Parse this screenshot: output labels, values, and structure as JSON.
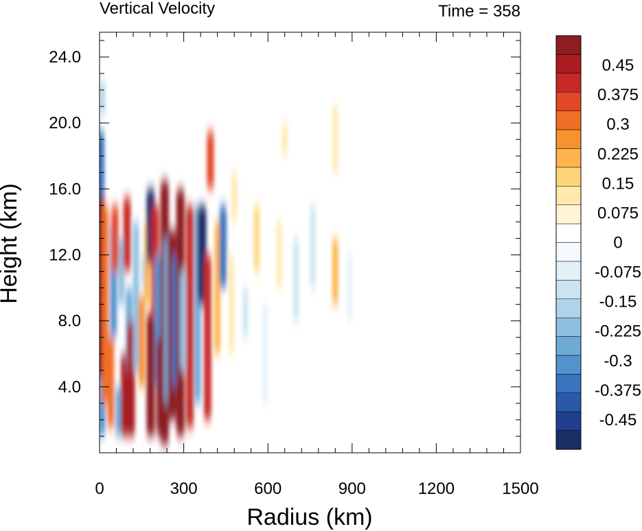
{
  "chart_data": {
    "type": "heatmap",
    "title": "Vertical Velocity",
    "right_title": "Time = 358",
    "xlabel": "Radius (km)",
    "ylabel": "Height (km)",
    "xlim": [
      0,
      1500
    ],
    "ylim": [
      0,
      25.5
    ],
    "x_ticks": [
      0,
      300,
      600,
      900,
      1200,
      1500
    ],
    "x_tick_labels": [
      "0",
      "300",
      "600",
      "900",
      "1200",
      "1500"
    ],
    "y_ticks": [
      4,
      8,
      12,
      16,
      20,
      24
    ],
    "y_tick_labels": [
      "4.0",
      "8.0",
      "12.0",
      "16.0",
      "20.0",
      "24.0"
    ],
    "colorbar": {
      "min": -0.525,
      "max": 0.525,
      "step": 0.025,
      "labels": [
        "0.45",
        "0.375",
        "0.3",
        "0.225",
        "0.15",
        "0.075",
        "0",
        "-0.075",
        "-0.15",
        "-0.225",
        "-0.3",
        "-0.375",
        "-0.45"
      ],
      "label_values": [
        0.45,
        0.375,
        0.3,
        0.225,
        0.15,
        0.075,
        0,
        -0.075,
        -0.15,
        -0.225,
        -0.3,
        -0.375,
        -0.45
      ],
      "colors": [
        "#1b2f66",
        "#1f3f8c",
        "#2a59aa",
        "#3a74bf",
        "#5293cc",
        "#6eaad6",
        "#8ebfe0",
        "#aed3ea",
        "#cbe4f2",
        "#e2f0f8",
        "#f3f9fd",
        "#ffffff",
        "#fff4d6",
        "#fee8aa",
        "#fed479",
        "#fdb44c",
        "#f8922f",
        "#ef6f26",
        "#e14826",
        "#c72a26",
        "#a91c22",
        "#8c1d20"
      ]
    },
    "features": [
      {
        "x": 2,
        "y0": 4.5,
        "y1": 16,
        "value": 0.52
      },
      {
        "x": 5,
        "y0": 15.5,
        "y1": 19.5,
        "value": -0.35
      },
      {
        "x": 10,
        "y0": 20.5,
        "y1": 22.5,
        "value": -0.15
      },
      {
        "x": 8,
        "y0": 1,
        "y1": 4.5,
        "value": -0.3
      },
      {
        "x": 20,
        "y0": 3,
        "y1": 15,
        "value": 0.3
      },
      {
        "x": 40,
        "y0": 1.5,
        "y1": 7,
        "value": 0.3
      },
      {
        "x": 50,
        "y0": 7,
        "y1": 14,
        "value": -0.3
      },
      {
        "x": 55,
        "y0": 11,
        "y1": 15,
        "value": 0.35
      },
      {
        "x": 68,
        "y0": 1,
        "y1": 4,
        "value": -0.25
      },
      {
        "x": 78,
        "y0": 9,
        "y1": 13,
        "value": -0.2
      },
      {
        "x": 90,
        "y0": 1,
        "y1": 6,
        "value": 0.45
      },
      {
        "x": 98,
        "y0": 11,
        "y1": 15.5,
        "value": 0.4
      },
      {
        "x": 105,
        "y0": 5,
        "y1": 10,
        "value": -0.25
      },
      {
        "x": 112,
        "y0": 1,
        "y1": 8,
        "value": 0.45
      },
      {
        "x": 130,
        "y0": 5,
        "y1": 14,
        "value": -0.2
      },
      {
        "x": 150,
        "y0": 4,
        "y1": 9.5,
        "value": 0.25
      },
      {
        "x": 160,
        "y0": 10,
        "y1": 12,
        "value": -0.15
      },
      {
        "x": 170,
        "y0": 9,
        "y1": 14,
        "value": 0.2
      },
      {
        "x": 182,
        "y0": 1,
        "y1": 8.5,
        "value": 0.5
      },
      {
        "x": 182,
        "y0": 11.5,
        "y1": 16,
        "value": -0.5
      },
      {
        "x": 198,
        "y0": 8,
        "y1": 15,
        "value": 0.4
      },
      {
        "x": 208,
        "y0": 4,
        "y1": 12,
        "value": -0.3
      },
      {
        "x": 218,
        "y0": 1,
        "y1": 7,
        "value": 0.5
      },
      {
        "x": 232,
        "y0": 0.5,
        "y1": 16.5,
        "value": 0.52
      },
      {
        "x": 240,
        "y0": 3,
        "y1": 13,
        "value": -0.25
      },
      {
        "x": 258,
        "y0": 2,
        "y1": 13.5,
        "value": 0.52
      },
      {
        "x": 270,
        "y0": 4,
        "y1": 12,
        "value": -0.35
      },
      {
        "x": 288,
        "y0": 1,
        "y1": 16,
        "value": 0.5
      },
      {
        "x": 296,
        "y0": 5,
        "y1": 11,
        "value": -0.2
      },
      {
        "x": 322,
        "y0": 1.5,
        "y1": 15,
        "value": 0.4
      },
      {
        "x": 350,
        "y0": 3,
        "y1": 15,
        "value": -0.25
      },
      {
        "x": 365,
        "y0": 9,
        "y1": 15,
        "value": -0.55
      },
      {
        "x": 385,
        "y0": 2,
        "y1": 12,
        "value": 0.4
      },
      {
        "x": 395,
        "y0": 16,
        "y1": 19.5,
        "value": 0.35
      },
      {
        "x": 420,
        "y0": 6,
        "y1": 14,
        "value": 0.2
      },
      {
        "x": 440,
        "y0": 10,
        "y1": 15,
        "value": -0.35
      },
      {
        "x": 470,
        "y0": 6,
        "y1": 12,
        "value": 0.12
      },
      {
        "x": 480,
        "y0": 14,
        "y1": 17,
        "value": 0.12
      },
      {
        "x": 520,
        "y0": 7,
        "y1": 10,
        "value": -0.1
      },
      {
        "x": 560,
        "y0": 11,
        "y1": 15,
        "value": 0.15
      },
      {
        "x": 590,
        "y0": 3,
        "y1": 9,
        "value": -0.08
      },
      {
        "x": 640,
        "y0": 10,
        "y1": 14,
        "value": 0.1
      },
      {
        "x": 660,
        "y0": 18,
        "y1": 20,
        "value": 0.12
      },
      {
        "x": 700,
        "y0": 8,
        "y1": 13,
        "value": -0.1
      },
      {
        "x": 760,
        "y0": 10,
        "y1": 15,
        "value": -0.1
      },
      {
        "x": 840,
        "y0": 9,
        "y1": 13,
        "value": 0.2
      },
      {
        "x": 840,
        "y0": 17,
        "y1": 21,
        "value": 0.12
      },
      {
        "x": 890,
        "y0": 8,
        "y1": 12,
        "value": -0.06
      }
    ]
  }
}
